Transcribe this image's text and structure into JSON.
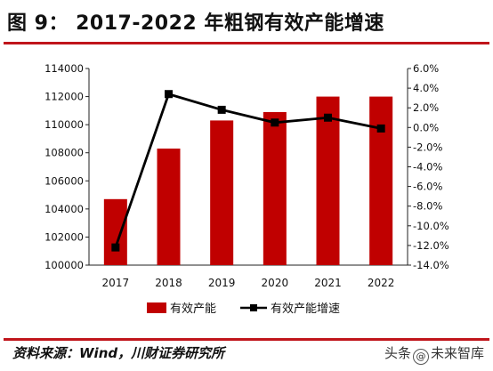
{
  "title": "图 9： 2017-2022 年粗钢有效产能增速",
  "source": "资料来源：Wind，川财证券研究所",
  "watermark": {
    "prefix": "头条",
    "logo": "@",
    "name": "未来智库"
  },
  "chart_data": {
    "type": "bar",
    "categories": [
      "2017",
      "2018",
      "2019",
      "2020",
      "2021",
      "2022"
    ],
    "series": [
      {
        "name": "有效产能",
        "type": "bar",
        "axis": "left",
        "values": [
          104700,
          108300,
          110300,
          110900,
          112000,
          112000
        ],
        "color": "#c00000"
      },
      {
        "name": "有效产能增速",
        "type": "line",
        "axis": "right",
        "values": [
          -12.2,
          3.4,
          1.8,
          0.5,
          1.0,
          -0.1
        ],
        "color": "#000000"
      }
    ],
    "y_left": {
      "min": 100000,
      "max": 114000,
      "step": 2000,
      "ticks": [
        "100000",
        "102000",
        "104000",
        "106000",
        "108000",
        "110000",
        "112000",
        "114000"
      ]
    },
    "y_right": {
      "min": -14,
      "max": 6,
      "step": 2,
      "ticks": [
        "-14.0%",
        "-12.0%",
        "-10.0%",
        "-8.0%",
        "-6.0%",
        "-4.0%",
        "-2.0%",
        "0.0%",
        "2.0%",
        "4.0%",
        "6.0%"
      ]
    },
    "legend": {
      "placement": "bottom-center",
      "labels": [
        "有效产能",
        "有效产能增速"
      ]
    },
    "grid": false
  }
}
